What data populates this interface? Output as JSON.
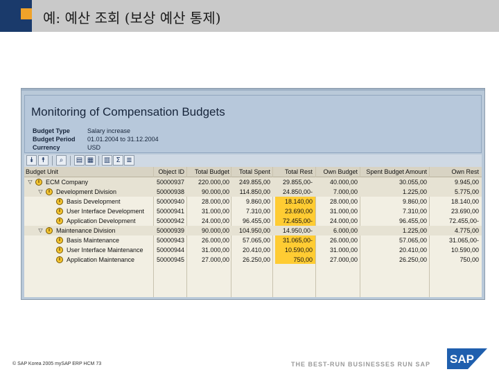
{
  "slide": {
    "title": "예: 예산 조회 (보상 예산 통제)",
    "footer_copyright": "©  SAP Korea 2005  mySAP ERP HCM   73",
    "footer_slogan": "THE BEST-RUN BUSINESSES RUN SAP",
    "logo_text": "SAP",
    "colors": {
      "header_navy": "#1a3a6b",
      "header_orange": "#f0a32a",
      "highlight_column": "#ffcc33"
    }
  },
  "window": {
    "title": "Monitoring of Compensation Budgets",
    "info": [
      {
        "label": "Budget Type",
        "value": "Salary increase"
      },
      {
        "label": "Budget Period",
        "value": "01.01.2004 to 31.12.2004"
      },
      {
        "label": "Currency",
        "value": "USD"
      }
    ],
    "toolbar_icons": [
      "expand-all-icon",
      "collapse-all-icon",
      "find-icon",
      "print-icon",
      "excel-export-icon",
      "layout-icon",
      "total-icon",
      "details-icon"
    ]
  },
  "table": {
    "headers": [
      "Budget Unit",
      "Object ID",
      "Total Budget",
      "Total Spent",
      "Total Rest",
      "Own Budget",
      "Spent Budget Amount",
      "Own Rest"
    ],
    "rows": [
      {
        "level": 0,
        "expand": "▽",
        "name": "ECM Company",
        "id": "50000937",
        "total_budget": "220.000,00",
        "total_spent": "249.855,00",
        "total_rest": "29.855,00-",
        "own_budget": "40.000,00",
        "spent_amount": "30.055,00",
        "own_rest": "9.945,00"
      },
      {
        "level": 1,
        "expand": "▽",
        "name": "Development Division",
        "id": "50000938",
        "total_budget": "90.000,00",
        "total_spent": "114.850,00",
        "total_rest": "24.850,00-",
        "own_budget": "7.000,00",
        "spent_amount": "1.225,00",
        "own_rest": "5.775,00"
      },
      {
        "level": 2,
        "expand": "",
        "name": "Basis Development",
        "id": "50000940",
        "total_budget": "28.000,00",
        "total_spent": "9.860,00",
        "total_rest": "18.140,00",
        "own_budget": "28.000,00",
        "spent_amount": "9.860,00",
        "own_rest": "18.140,00"
      },
      {
        "level": 2,
        "expand": "",
        "name": "User Interface Development",
        "id": "50000941",
        "total_budget": "31.000,00",
        "total_spent": "7.310,00",
        "total_rest": "23.690,00",
        "own_budget": "31.000,00",
        "spent_amount": "7.310,00",
        "own_rest": "23.690,00"
      },
      {
        "level": 2,
        "expand": "",
        "name": "Application Development",
        "id": "50000942",
        "total_budget": "24.000,00",
        "total_spent": "96.455,00",
        "total_rest": "72.455,00-",
        "own_budget": "24.000,00",
        "spent_amount": "96.455,00",
        "own_rest": "72.455,00-"
      },
      {
        "level": 1,
        "expand": "▽",
        "name": "Maintenance Division",
        "id": "50000939",
        "total_budget": "90.000,00",
        "total_spent": "104.950,00",
        "total_rest": "14.950,00-",
        "own_budget": "6.000,00",
        "spent_amount": "1.225,00",
        "own_rest": "4.775,00"
      },
      {
        "level": 2,
        "expand": "",
        "name": "Basis Maintenance",
        "id": "50000943",
        "total_budget": "26.000,00",
        "total_spent": "57.065,00",
        "total_rest": "31.065,00-",
        "own_budget": "26.000,00",
        "spent_amount": "57.065,00",
        "own_rest": "31.065,00-"
      },
      {
        "level": 2,
        "expand": "",
        "name": "User Interface Maintenance",
        "id": "50000944",
        "total_budget": "31.000,00",
        "total_spent": "20.410,00",
        "total_rest": "10.590,00",
        "own_budget": "31.000,00",
        "spent_amount": "20.410,00",
        "own_rest": "10.590,00"
      },
      {
        "level": 2,
        "expand": "",
        "name": "Application Maintenance",
        "id": "50000945",
        "total_budget": "27.000,00",
        "total_spent": "26.250,00",
        "total_rest": "750,00",
        "own_budget": "27.000,00",
        "spent_amount": "26.250,00",
        "own_rest": "750,00"
      }
    ]
  }
}
